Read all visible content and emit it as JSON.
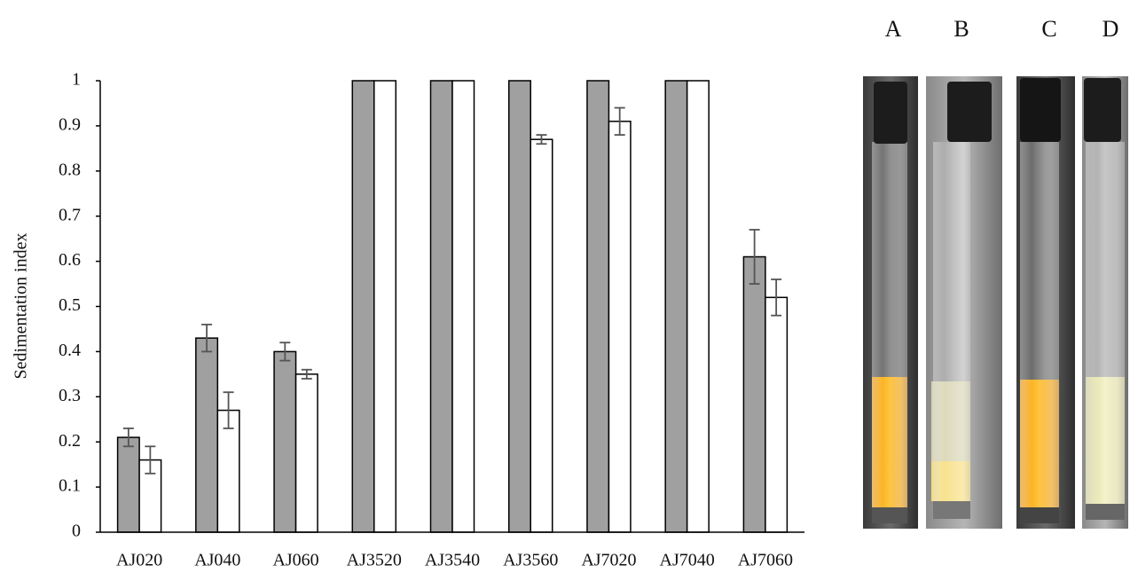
{
  "chart_data": {
    "type": "bar",
    "y_label": "Sedimentation index",
    "categories": [
      "AJ020",
      "AJ040",
      "AJ060",
      "AJ3520",
      "AJ3540",
      "AJ3560",
      "AJ7020",
      "AJ7040",
      "AJ7060"
    ],
    "series": [
      {
        "color": "#a0a0a0",
        "values": [
          0.21,
          0.43,
          0.4,
          1,
          1,
          1,
          1,
          1,
          0.61
        ],
        "errors": [
          0.02,
          0.03,
          0.02,
          0,
          0,
          0,
          0,
          0,
          0.06
        ]
      },
      {
        "color": "#ffffff",
        "values": [
          0.16,
          0.27,
          0.35,
          1,
          1,
          0.87,
          0.91,
          1,
          0.52
        ],
        "errors": [
          0.03,
          0.04,
          0.01,
          0,
          0,
          0.01,
          0.03,
          0,
          0.04
        ]
      }
    ],
    "ylim": [
      0,
      1
    ],
    "yticks": [
      0,
      0.1,
      0.2,
      0.3,
      0.4,
      0.5,
      0.6,
      0.7,
      0.8,
      0.9,
      1
    ],
    "grid": false
  },
  "photo_labels": [
    "A",
    "B",
    "C",
    "D"
  ]
}
